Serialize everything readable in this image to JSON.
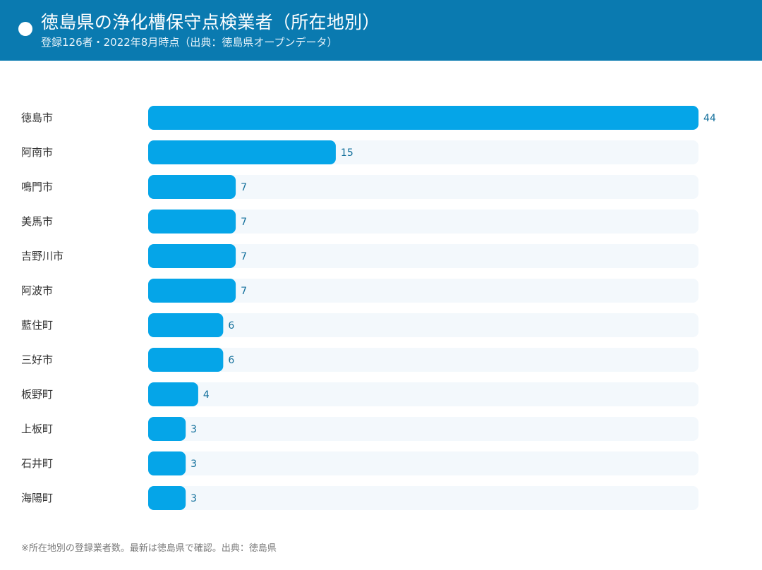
{
  "header": {
    "title": "徳島県の浄化槽保守点検業者（所在地別）",
    "subtitle": "登録126者・2022年8月時点（出典：徳島県オープンデータ）"
  },
  "chart_data": {
    "type": "bar",
    "orientation": "horizontal",
    "categories": [
      "徳島市",
      "阿南市",
      "鳴門市",
      "美馬市",
      "吉野川市",
      "阿波市",
      "藍住町",
      "三好市",
      "板野町",
      "上板町",
      "石井町",
      "海陽町"
    ],
    "values": [
      44,
      15,
      7,
      7,
      7,
      7,
      6,
      6,
      4,
      3,
      3,
      3
    ],
    "xlim": [
      0,
      44
    ],
    "grid": false,
    "legend": "none",
    "data_labels": true
  },
  "footnote": "※所在地別の登録業者数。最新は徳島県で確認。出典：徳島県",
  "colors": {
    "header_bg": "#0a7ab0",
    "bar": "#05a5e8",
    "track": "#f3f8fc",
    "value_label": "#13709c",
    "category_label": "#333333"
  }
}
